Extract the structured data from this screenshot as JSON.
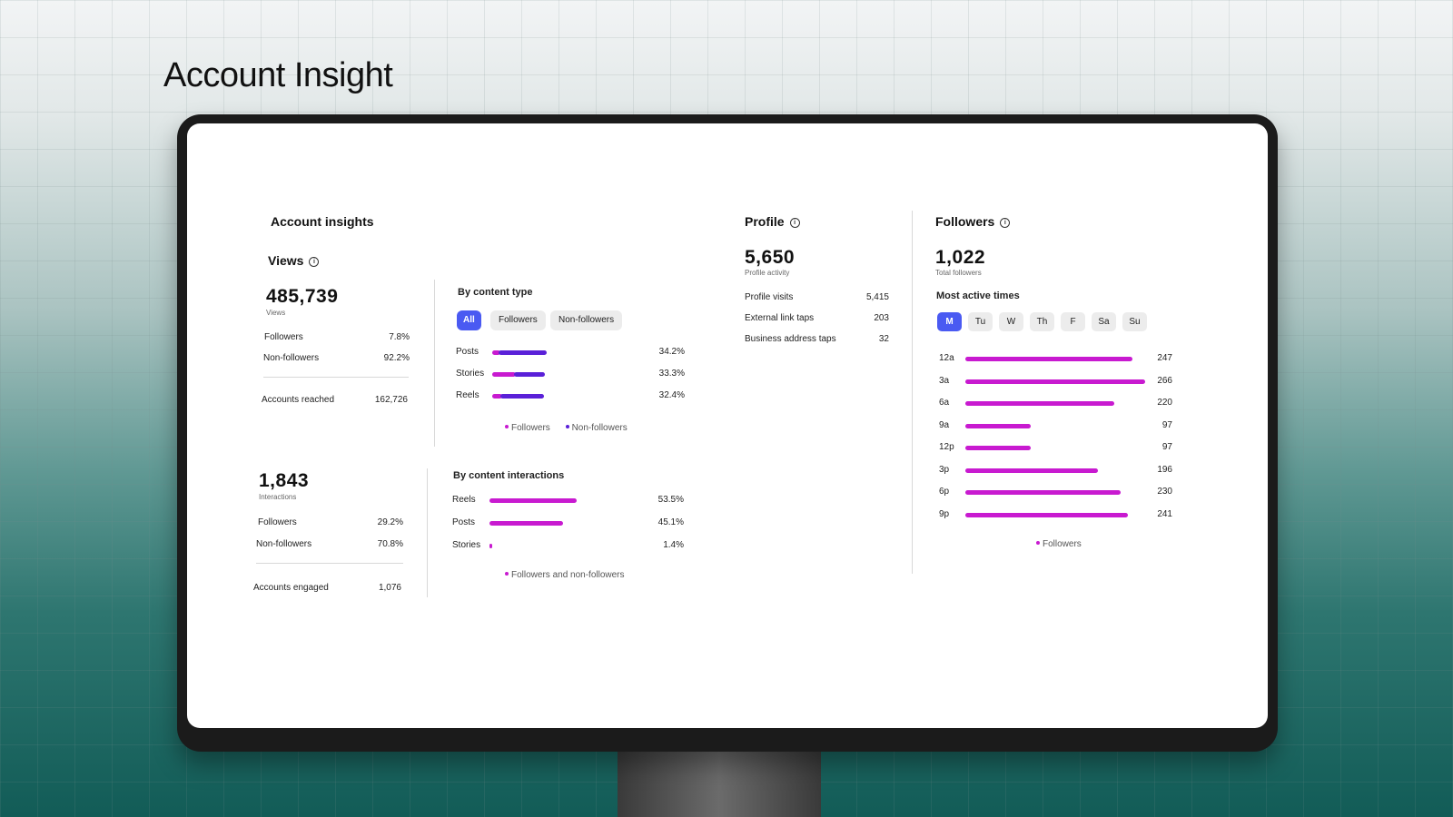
{
  "slide_title": "Account Insight",
  "colors": {
    "accent": "#4a5af2",
    "followers": "#c81ad0",
    "non_followers": "#5a20d8"
  },
  "insights": {
    "title": "Account insights",
    "views": {
      "header": "Views",
      "total": "485,739",
      "caption": "Views",
      "followers_label": "Followers",
      "followers_value": "7.8%",
      "nonfollowers_label": "Non-followers",
      "nonfollowers_value": "92.2%",
      "reached_label": "Accounts reached",
      "reached_value": "162,726"
    },
    "interactions": {
      "total": "1,843",
      "caption": "Interactions",
      "followers_label": "Followers",
      "followers_value": "29.2%",
      "nonfollowers_label": "Non-followers",
      "nonfollowers_value": "70.8%",
      "engaged_label": "Accounts engaged",
      "engaged_value": "1,076"
    }
  },
  "content_type": {
    "title": "By content type",
    "filters": [
      "All",
      "Followers",
      "Non-followers"
    ],
    "rows": [
      {
        "label": "Posts",
        "value": "34.2%",
        "pct": 34.2,
        "followers_share": 0.15
      },
      {
        "label": "Stories",
        "value": "33.3%",
        "pct": 33.3,
        "followers_share": 0.45
      },
      {
        "label": "Reels",
        "value": "32.4%",
        "pct": 32.4,
        "followers_share": 0.2
      }
    ],
    "legend": [
      "Followers",
      "Non-followers"
    ]
  },
  "content_interactions": {
    "title": "By content interactions",
    "rows": [
      {
        "label": "Reels",
        "value": "53.5%",
        "pct": 53.5
      },
      {
        "label": "Posts",
        "value": "45.1%",
        "pct": 45.1
      },
      {
        "label": "Stories",
        "value": "1.4%",
        "pct": 1.4
      }
    ],
    "legend": "Followers and non-followers"
  },
  "profile": {
    "header": "Profile",
    "total": "5,650",
    "caption": "Profile activity",
    "rows": [
      {
        "label": "Profile visits",
        "value": "5,415"
      },
      {
        "label": "External link taps",
        "value": "203"
      },
      {
        "label": "Business address taps",
        "value": "32"
      }
    ]
  },
  "followers": {
    "header": "Followers",
    "total": "1,022",
    "caption": "Total followers",
    "active_title": "Most active times",
    "days": [
      "M",
      "Tu",
      "W",
      "Th",
      "F",
      "Sa",
      "Su"
    ],
    "selected_day": "M",
    "times": [
      {
        "label": "12a",
        "value": 247
      },
      {
        "label": "3a",
        "value": 266
      },
      {
        "label": "6a",
        "value": 220
      },
      {
        "label": "9a",
        "value": 97
      },
      {
        "label": "12p",
        "value": 97
      },
      {
        "label": "3p",
        "value": 196
      },
      {
        "label": "6p",
        "value": 230
      },
      {
        "label": "9p",
        "value": 241
      }
    ],
    "legend": "Followers"
  }
}
